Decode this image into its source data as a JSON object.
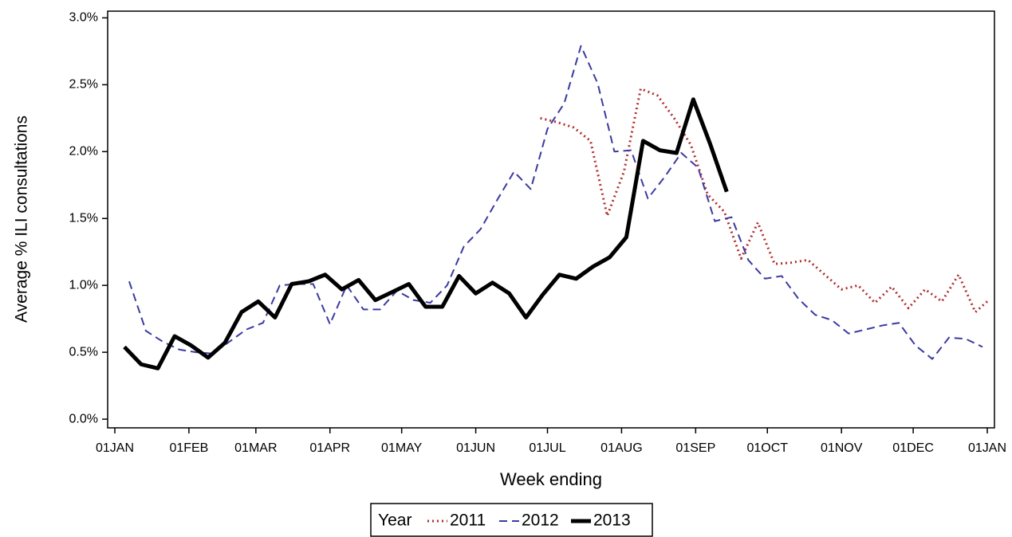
{
  "chart_data": {
    "type": "line",
    "y_label": "Average % ILI consultations",
    "x_label": "Week ending",
    "legend_title": "Year",
    "legend_position": "bottom",
    "xlim": [
      -3,
      368
    ],
    "ylim": [
      -0.065,
      3.05
    ],
    "xticks": [
      {
        "value": 0,
        "label": "01JAN"
      },
      {
        "value": 31,
        "label": "01FEB"
      },
      {
        "value": 59,
        "label": "01MAR"
      },
      {
        "value": 90,
        "label": "01APR"
      },
      {
        "value": 120,
        "label": "01MAY"
      },
      {
        "value": 151,
        "label": "01JUN"
      },
      {
        "value": 181,
        "label": "01JUL"
      },
      {
        "value": 212,
        "label": "01AUG"
      },
      {
        "value": 243,
        "label": "01SEP"
      },
      {
        "value": 273,
        "label": "01OCT"
      },
      {
        "value": 304,
        "label": "01NOV"
      },
      {
        "value": 334,
        "label": "01DEC"
      },
      {
        "value": 365,
        "label": "01JAN"
      }
    ],
    "yticks": [
      {
        "value": 0,
        "label": "0.0%"
      },
      {
        "value": 0.5,
        "label": "0.5%"
      },
      {
        "value": 1,
        "label": "1.0%"
      },
      {
        "value": 1.5,
        "label": "1.5%"
      },
      {
        "value": 2,
        "label": "2.0%"
      },
      {
        "value": 2.5,
        "label": "2.5%"
      },
      {
        "value": 3,
        "label": "3.0%"
      }
    ],
    "series": [
      {
        "name": "2011",
        "color": "#b03030",
        "style": "dotted",
        "x": [
          178,
          185,
          192,
          199,
          206,
          213,
          220,
          227,
          234,
          241,
          248,
          255,
          262,
          269,
          276,
          283,
          290,
          297,
          304,
          311,
          318,
          325,
          332,
          339,
          346,
          353,
          360,
          365
        ],
        "values": [
          2.25,
          2.22,
          2.18,
          2.08,
          1.52,
          1.85,
          2.47,
          2.42,
          2.25,
          2.05,
          1.68,
          1.55,
          1.2,
          1.47,
          1.16,
          1.17,
          1.19,
          1.08,
          0.97,
          1.0,
          0.87,
          0.99,
          0.83,
          0.97,
          0.88,
          1.08,
          0.8,
          0.88
        ]
      },
      {
        "name": "2012",
        "color": "#3a3aa0",
        "style": "dashed",
        "x": [
          6,
          13,
          20,
          27,
          34,
          41,
          48,
          55,
          62,
          69,
          76,
          83,
          90,
          97,
          104,
          111,
          118,
          125,
          132,
          139,
          146,
          153,
          160,
          167,
          174,
          181,
          188,
          195,
          202,
          209,
          216,
          223,
          230,
          237,
          244,
          251,
          258,
          265,
          272,
          279,
          286,
          293,
          300,
          307,
          314,
          321,
          328,
          335,
          342,
          349,
          356,
          363
        ],
        "values": [
          1.03,
          0.66,
          0.58,
          0.52,
          0.5,
          0.49,
          0.58,
          0.67,
          0.72,
          1.0,
          1.01,
          1.01,
          0.71,
          1.0,
          0.82,
          0.82,
          0.96,
          0.89,
          0.87,
          1.0,
          1.29,
          1.42,
          1.64,
          1.85,
          1.72,
          2.17,
          2.36,
          2.79,
          2.51,
          2.0,
          2.01,
          1.65,
          1.81,
          1.99,
          1.88,
          1.48,
          1.51,
          1.19,
          1.05,
          1.07,
          0.9,
          0.78,
          0.74,
          0.64,
          0.67,
          0.7,
          0.72,
          0.55,
          0.45,
          0.61,
          0.6,
          0.54
        ]
      },
      {
        "name": "2013",
        "color": "#000000",
        "style": "solid",
        "x": [
          4,
          11,
          18,
          25,
          32,
          39,
          46,
          53,
          60,
          67,
          74,
          81,
          88,
          95,
          102,
          109,
          116,
          123,
          130,
          137,
          144,
          151,
          158,
          165,
          172,
          179,
          186,
          193,
          200,
          207,
          214,
          221,
          228,
          235,
          242,
          249,
          256
        ],
        "values": [
          0.54,
          0.41,
          0.38,
          0.62,
          0.55,
          0.46,
          0.57,
          0.8,
          0.88,
          0.76,
          1.01,
          1.03,
          1.08,
          0.97,
          1.04,
          0.89,
          0.95,
          1.01,
          0.84,
          0.84,
          1.07,
          0.94,
          1.02,
          0.94,
          0.76,
          0.93,
          1.08,
          1.05,
          1.14,
          1.21,
          1.36,
          2.08,
          2.01,
          1.99,
          2.39,
          2.06,
          1.7
        ]
      }
    ]
  }
}
